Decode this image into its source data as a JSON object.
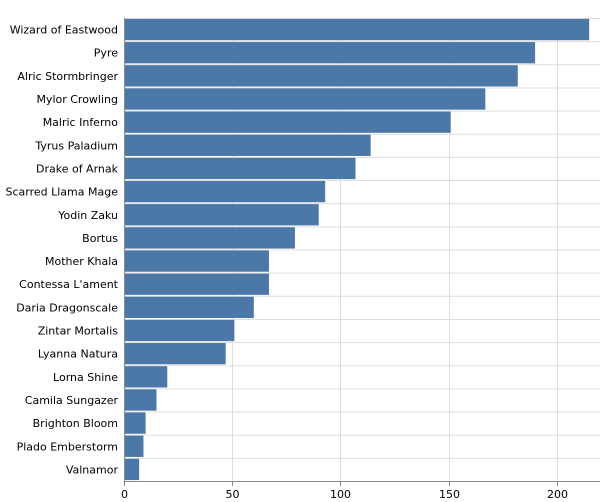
{
  "chart_data": {
    "type": "bar",
    "orientation": "horizontal",
    "categories": [
      "Wizard of Eastwood",
      "Pyre",
      "Alric Stormbringer",
      "Mylor Crowling",
      "Malric Inferno",
      "Tyrus Paladium",
      "Drake of Arnak",
      "Scarred Llama Mage",
      "Yodin Zaku",
      "Bortus",
      "Mother Khala",
      "Contessa L'ament",
      "Daria Dragonscale",
      "Zintar Mortalis",
      "Lyanna Natura",
      "Lorna Shine",
      "Camila Sungazer",
      "Brighton Bloom",
      "Plado Emberstorm",
      "Valnamor"
    ],
    "values": [
      215,
      190,
      182,
      167,
      151,
      114,
      107,
      93,
      90,
      79,
      67,
      67,
      60,
      51,
      47,
      20,
      15,
      10,
      9,
      7
    ],
    "xlim": [
      0,
      220
    ],
    "xticks": [
      0,
      50,
      100,
      150,
      200
    ],
    "grid": true,
    "bar_color": "#4c78a8"
  }
}
